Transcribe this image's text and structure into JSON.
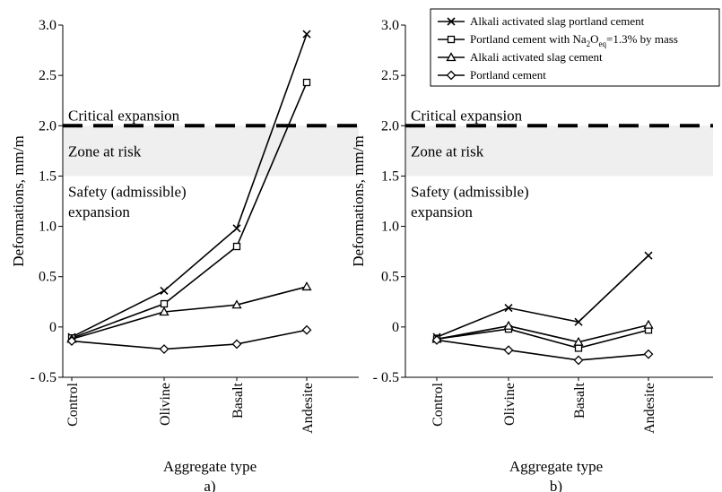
{
  "chart_data": [
    {
      "type": "line",
      "caption": "a)",
      "xlabel": "Aggregate type",
      "ylabel": "Deformations, mm/m",
      "categories": [
        "Control",
        "Olivine",
        "Basalt",
        "Andesite"
      ],
      "ylim": [
        -0.5,
        3.0
      ],
      "yticks": [
        "- 0.5",
        "0",
        "0.5",
        "1.0",
        "1.5",
        "2.0",
        "2.5",
        "3.0"
      ],
      "critical_line": 2.0,
      "risk_zone": [
        1.5,
        2.0
      ],
      "zone_labels": {
        "critical": "Critical expansion",
        "risk": "Zone at risk",
        "safety_line1": "Safety (admissible)",
        "safety_line2": "expansion"
      },
      "series": [
        {
          "name": "Alkali activated slag portland cement",
          "marker": "x",
          "values": [
            -0.1,
            0.36,
            0.98,
            2.91
          ]
        },
        {
          "name": "Portland cement with Na2Oeq=1.3% by mass",
          "marker": "square",
          "values": [
            -0.11,
            0.23,
            0.8,
            2.43
          ]
        },
        {
          "name": "Alkali activated slag cement",
          "marker": "triangle",
          "values": [
            -0.12,
            0.15,
            0.22,
            0.4
          ]
        },
        {
          "name": "Portland cement",
          "marker": "diamond",
          "values": [
            -0.14,
            -0.22,
            -0.17,
            -0.03
          ]
        }
      ]
    },
    {
      "type": "line",
      "caption": "b)",
      "xlabel": "Aggregate type",
      "ylabel": "Deformations, mm/m",
      "categories": [
        "Control",
        "Olivine",
        "Basalt",
        "Andesite"
      ],
      "ylim": [
        -0.5,
        3.0
      ],
      "yticks": [
        "- 0.5",
        "0",
        "0.5",
        "1.0",
        "1.5",
        "2.0",
        "2.5",
        "3.0"
      ],
      "critical_line": 2.0,
      "risk_zone": [
        1.5,
        2.0
      ],
      "zone_labels": {
        "critical": "Critical expansion",
        "risk": "Zone at risk",
        "safety_line1": "Safety (admissible)",
        "safety_line2": "expansion"
      },
      "legend": {
        "position": "top-right",
        "entries": [
          {
            "marker": "x",
            "text": "Alkali activated slag portland cement"
          },
          {
            "marker": "square",
            "text": "Portland cement with Na",
            "sub1": "2",
            "mid": "O",
            "sub2": "eq",
            "tail": "=1.3% by mass"
          },
          {
            "marker": "triangle",
            "text": "Alkali activated slag  cement"
          },
          {
            "marker": "diamond",
            "text": "Portland cement"
          }
        ]
      },
      "series": [
        {
          "name": "Alkali activated slag portland cement",
          "marker": "x",
          "values": [
            -0.1,
            0.19,
            0.05,
            0.71
          ]
        },
        {
          "name": "Portland cement with Na2Oeq=1.3% by mass",
          "marker": "square",
          "values": [
            -0.12,
            -0.02,
            -0.21,
            -0.03
          ]
        },
        {
          "name": "Alkali activated slag cement",
          "marker": "triangle",
          "values": [
            -0.12,
            0.01,
            -0.15,
            0.02
          ]
        },
        {
          "name": "Portland cement",
          "marker": "diamond",
          "values": [
            -0.13,
            -0.23,
            -0.33,
            -0.27
          ]
        }
      ]
    }
  ]
}
